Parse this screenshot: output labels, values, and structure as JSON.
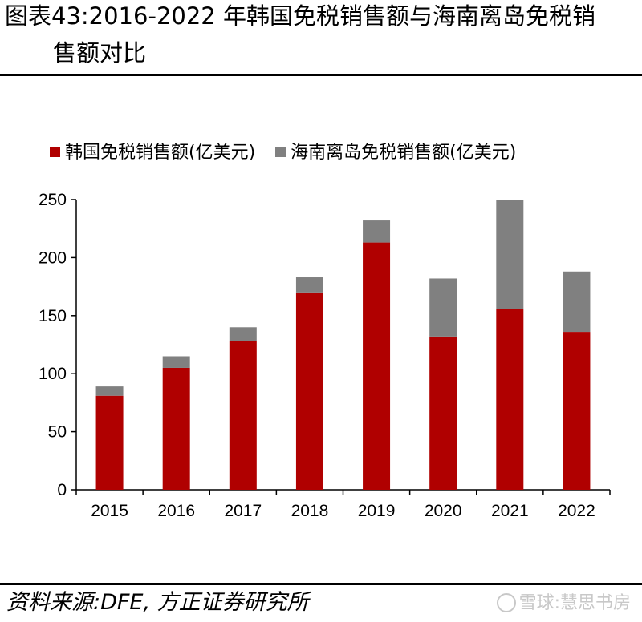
{
  "header": {
    "title_line1": "图表43:2016-2022 年韩国免税销售额与海南离岛免税销",
    "title_line2": "售额对比"
  },
  "footer": {
    "source": "资料来源:DFE, 方正证券研究所",
    "watermark": "雪球:慧思书房"
  },
  "chart_data": {
    "type": "bar",
    "stacked": true,
    "title": "图表43:2016-2022 年韩国免税销售额与海南离岛免税销售额对比",
    "categories": [
      "2015",
      "2016",
      "2017",
      "2018",
      "2019",
      "2020",
      "2021",
      "2022"
    ],
    "series": [
      {
        "name": "韩国免税销售额(亿美元)",
        "color": "#b00000",
        "values": [
          81,
          105,
          128,
          170,
          213,
          132,
          156,
          136
        ]
      },
      {
        "name": "海南离岛免税销售额(亿美元)",
        "color": "#808080",
        "values": [
          8,
          10,
          12,
          13,
          19,
          50,
          94,
          52
        ]
      }
    ],
    "ylim": [
      0,
      250
    ],
    "yticks": [
      0,
      50,
      100,
      150,
      200,
      250
    ],
    "grid": false,
    "legend_position": "top-left"
  }
}
